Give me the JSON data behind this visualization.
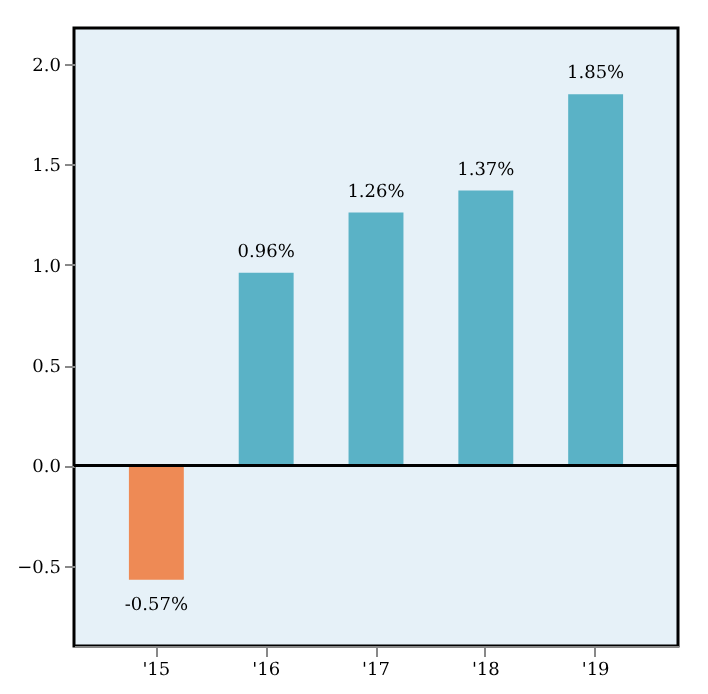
{
  "chart_data": {
    "type": "bar",
    "categories": [
      "'15",
      "'16",
      "'17",
      "'18",
      "'19"
    ],
    "values": [
      -0.57,
      0.96,
      1.26,
      1.37,
      1.85
    ],
    "colors": [
      "#ee8a55",
      "#5ab2c6",
      "#5ab2c6",
      "#5ab2c6",
      "#5ab2c6"
    ],
    "value_labels": [
      "-0.57%",
      "0.96%",
      "1.26%",
      "1.37%",
      "1.85%"
    ],
    "ylim": [
      -0.9,
      2.18
    ],
    "yticks": [
      {
        "value": -0.5,
        "label": "−0.5"
      },
      {
        "value": 0,
        "label": "0.0"
      },
      {
        "value": 0.5,
        "label": "0.5"
      },
      {
        "value": 1.0,
        "label": "1.0"
      },
      {
        "value": 1.5,
        "label": "1.5"
      },
      {
        "value": 2.0,
        "label": "2.0"
      }
    ],
    "ref_lines": [
      {
        "axis": "y",
        "value": 0,
        "color": "#000000"
      }
    ],
    "grid": false
  }
}
